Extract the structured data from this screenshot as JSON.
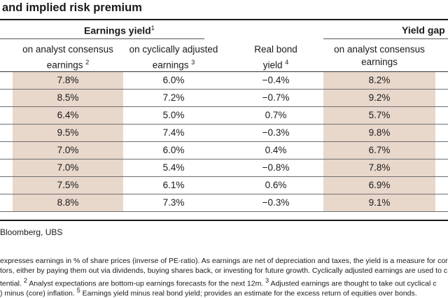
{
  "title": "and implied risk premium",
  "groups": {
    "earnings_yield": {
      "label": "Earnings yield",
      "note": "1"
    },
    "yield_gap": {
      "label": "Yield gap",
      "note": ""
    }
  },
  "columns": [
    {
      "line1": "on analyst consensus",
      "line2": "earnings",
      "note": "2"
    },
    {
      "line1": "on cyclically adjusted",
      "line2": "earnings",
      "note": "3"
    },
    {
      "line1": "Real bond",
      "line2": "yield",
      "note": "4"
    },
    {
      "line1": "on analyst consensus",
      "line2": "earnings",
      "note": ""
    }
  ],
  "rows": [
    [
      "7.8%",
      "6.0%",
      "−0.4%",
      "8.2%"
    ],
    [
      "8.5%",
      "7.2%",
      "−0.7%",
      "9.2%"
    ],
    [
      "6.4%",
      "5.0%",
      "0.7%",
      "5.7%"
    ],
    [
      "9.5%",
      "7.4%",
      "−0.3%",
      "9.8%"
    ],
    [
      "7.0%",
      "6.0%",
      "0.4%",
      "6.7%"
    ],
    [
      "7.0%",
      "5.4%",
      "−0.8%",
      "7.8%"
    ],
    [
      "7.5%",
      "6.1%",
      "0.6%",
      "6.9%"
    ],
    [
      "8.8%",
      "7.3%",
      "−0.3%",
      "9.1%"
    ]
  ],
  "source": "Bloomberg, UBS",
  "footnotes": {
    "line1": "expresses earnings in % of share prices (inverse of PE-ratio). As earnings are net of depreciation and taxes, the yield is a measure for com",
    "line2": "tors, either by paying them out via dividends, buying shares back, or investing for future growth. Cyclically adjusted earnings are used to c",
    "line3_text_a": "tential.",
    "line3_note_a": "2",
    "line3_text_b": "Analyst expectations are bottom-up earnings forecasts for the next 12m.",
    "line3_note_b": "3",
    "line3_text_c": "Adjusted earnings are thought to take out cyclical c",
    "line4_text_a": ") minus (core) inflation.",
    "line4_note_a": "5",
    "line4_text_b": "Earnings yield minus real bond yield; provides an estimate for the excess return of equities over bonds."
  },
  "colors": {
    "shaded_column": "#e8d7cb",
    "rule": "#1a1a1a"
  }
}
